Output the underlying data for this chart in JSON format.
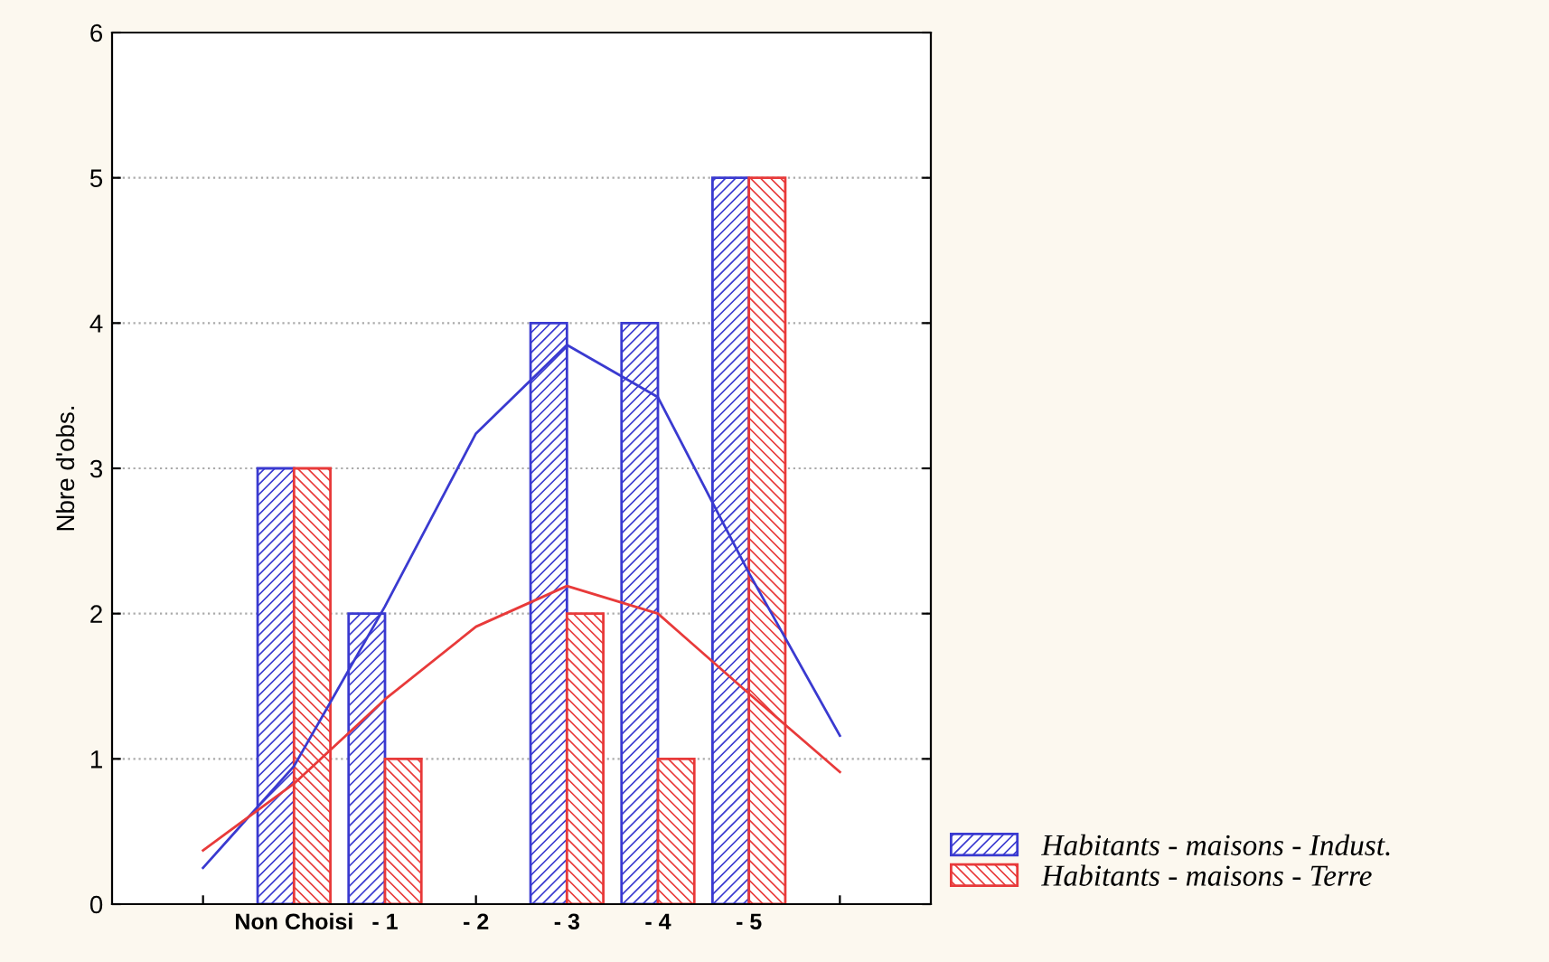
{
  "chart_data": {
    "type": "bar",
    "ylabel": "Nbre d'obs.",
    "categories": [
      null,
      "Non Choisi",
      "- 1",
      "- 2",
      "- 3",
      "- 4",
      "- 5",
      null
    ],
    "ylim": [
      0,
      6
    ],
    "yticks": [
      0,
      1,
      2,
      3,
      4,
      5,
      6
    ],
    "grid": "y",
    "legend": "bottom right",
    "series": [
      {
        "name": "Habitants - maisons - Indust.",
        "color": "#3a3ad0",
        "values": [
          null,
          3,
          2,
          0,
          4,
          4,
          5,
          null
        ]
      },
      {
        "name": "Habitants - maisons - Terre",
        "color": "#e83a3a",
        "values": [
          null,
          3,
          1,
          0,
          2,
          1,
          5,
          null
        ]
      },
      {
        "type": "line",
        "color": "#3a3ad0",
        "values": [
          0.25,
          0.95,
          2.05,
          3.24,
          3.85,
          3.49,
          2.28,
          1.16
        ]
      },
      {
        "type": "line",
        "color": "#e83a3a",
        "values": [
          0.37,
          0.83,
          1.41,
          1.91,
          2.19,
          2.0,
          1.45,
          0.91
        ]
      }
    ]
  }
}
